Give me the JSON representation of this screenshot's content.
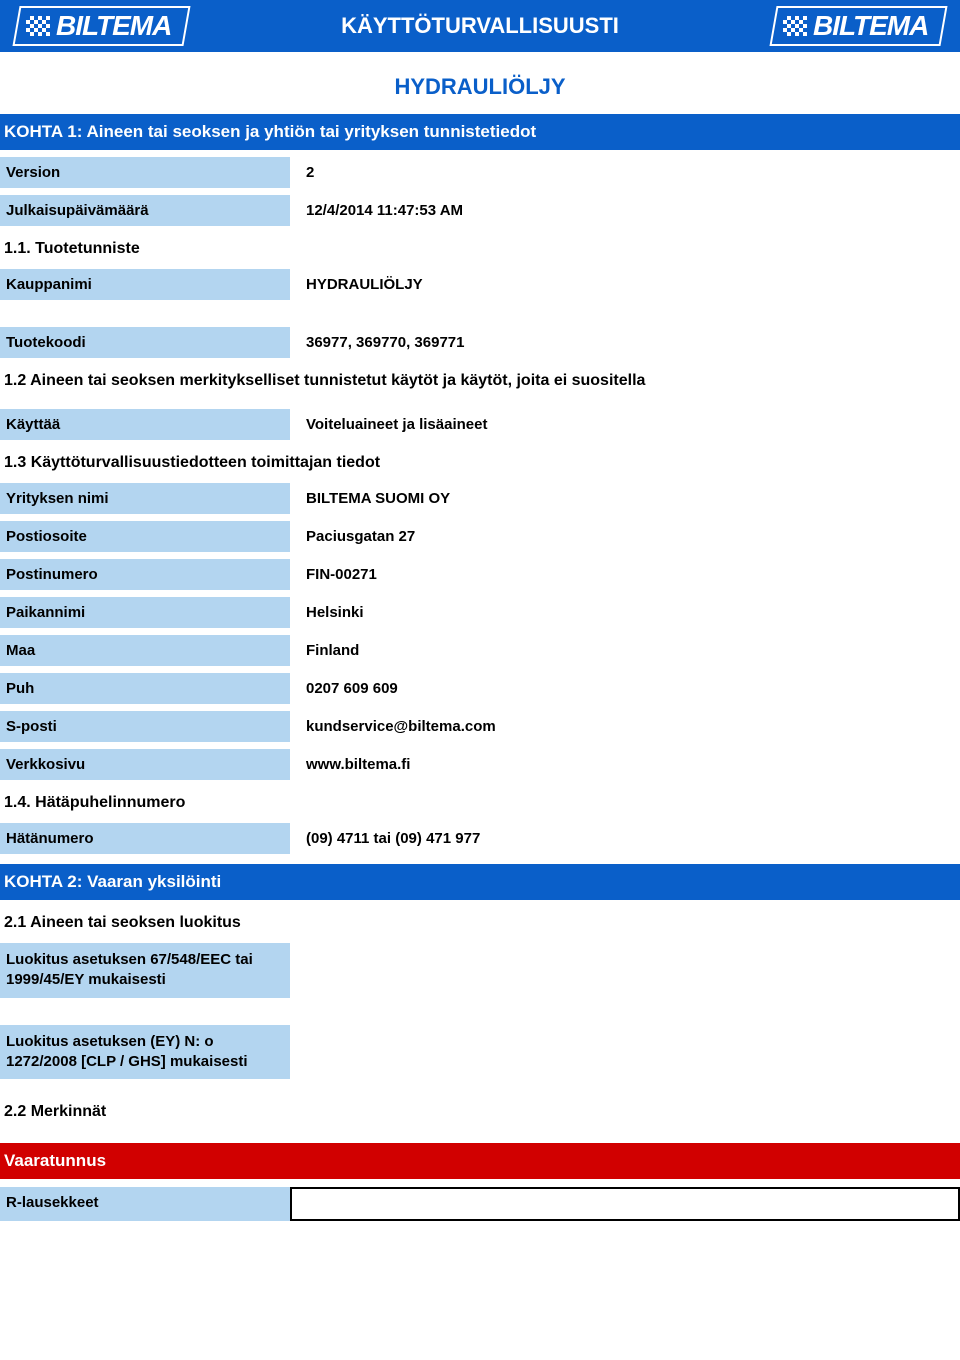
{
  "header": {
    "logo_text": "BILTEMA",
    "title": "KÄYTTÖTURVALLISUUSTI"
  },
  "subtitle": "HYDRAULIÖLJY",
  "section1": {
    "heading": "KOHTA 1: Aineen tai seoksen ja yhtiön tai yrityksen tunnistetiedot",
    "rows": {
      "version_label": "Version",
      "version_value": "2",
      "pubdate_label": "Julkaisupäivämäärä",
      "pubdate_value": "12/4/2014 11:47:53 AM"
    },
    "sub11": "1.1. Tuotetunniste",
    "tradename_label": "Kauppanimi",
    "tradename_value": "HYDRAULIÖLJY",
    "productcode_label": "Tuotekoodi",
    "productcode_value": "36977, 369770, 369771",
    "sub12": "1.2 Aineen tai seoksen merkitykselliset tunnistetut käytöt ja käytöt, joita ei suositella",
    "use_label": "Käyttää",
    "use_value": "Voiteluaineet ja lisäaineet",
    "sub13": "1.3 Käyttöturvallisuustiedotteen toimittajan tiedot",
    "supplier": {
      "company_label": "Yrityksen nimi",
      "company_value": "BILTEMA SUOMI OY",
      "address_label": "Postiosoite",
      "address_value": "Paciusgatan 27",
      "postcode_label": "Postinumero",
      "postcode_value": "FIN-00271",
      "city_label": "Paikannimi",
      "city_value": "Helsinki",
      "country_label": "Maa",
      "country_value": "Finland",
      "phone_label": "Puh",
      "phone_value": "0207 609 609",
      "email_label": "S-posti",
      "email_value": "kundservice@biltema.com",
      "web_label": "Verkkosivu",
      "web_value": "www.biltema.fi"
    },
    "sub14": "1.4. Hätäpuhelinnumero",
    "emergency_label": "Hätänumero",
    "emergency_value": "(09) 4711 tai (09) 471 977"
  },
  "section2": {
    "heading": "KOHTA 2: Vaaran yksilöinti",
    "sub21": "2.1 Aineen tai seoksen luokitus",
    "class_eec_label": "Luokitus asetuksen 67/548/EEC tai 1999/45/EY mukaisesti",
    "class_clp_label": "Luokitus asetuksen (EY) N: o 1272/2008 [CLP / GHS] mukaisesti",
    "sub22": "2.2 Merkinnät",
    "hazard_symbol": "Vaaratunnus",
    "r_phrases_label": "R-lausekkeet"
  }
}
